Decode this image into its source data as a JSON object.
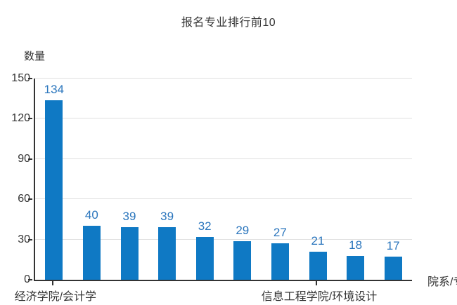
{
  "chart_data": {
    "type": "bar",
    "title": "报名专业排行前10",
    "ylabel": "数量",
    "xlabel": "院系/专业",
    "ylim": [
      0,
      150
    ],
    "y_ticks": [
      0,
      30,
      60,
      90,
      120,
      150
    ],
    "grid": true,
    "legend_position": "none",
    "categories": [
      "经济学院/会计学",
      "",
      "",
      "",
      "",
      "",
      "",
      "信息工程学院/环境设计",
      "",
      ""
    ],
    "values": [
      134,
      40,
      39,
      39,
      32,
      29,
      27,
      21,
      18,
      17
    ],
    "colors": {
      "bar": "#0f79c4",
      "value_label": "#2b76bd",
      "axis": "#333333",
      "grid": "#e0e0e0",
      "text": "#333333"
    }
  }
}
